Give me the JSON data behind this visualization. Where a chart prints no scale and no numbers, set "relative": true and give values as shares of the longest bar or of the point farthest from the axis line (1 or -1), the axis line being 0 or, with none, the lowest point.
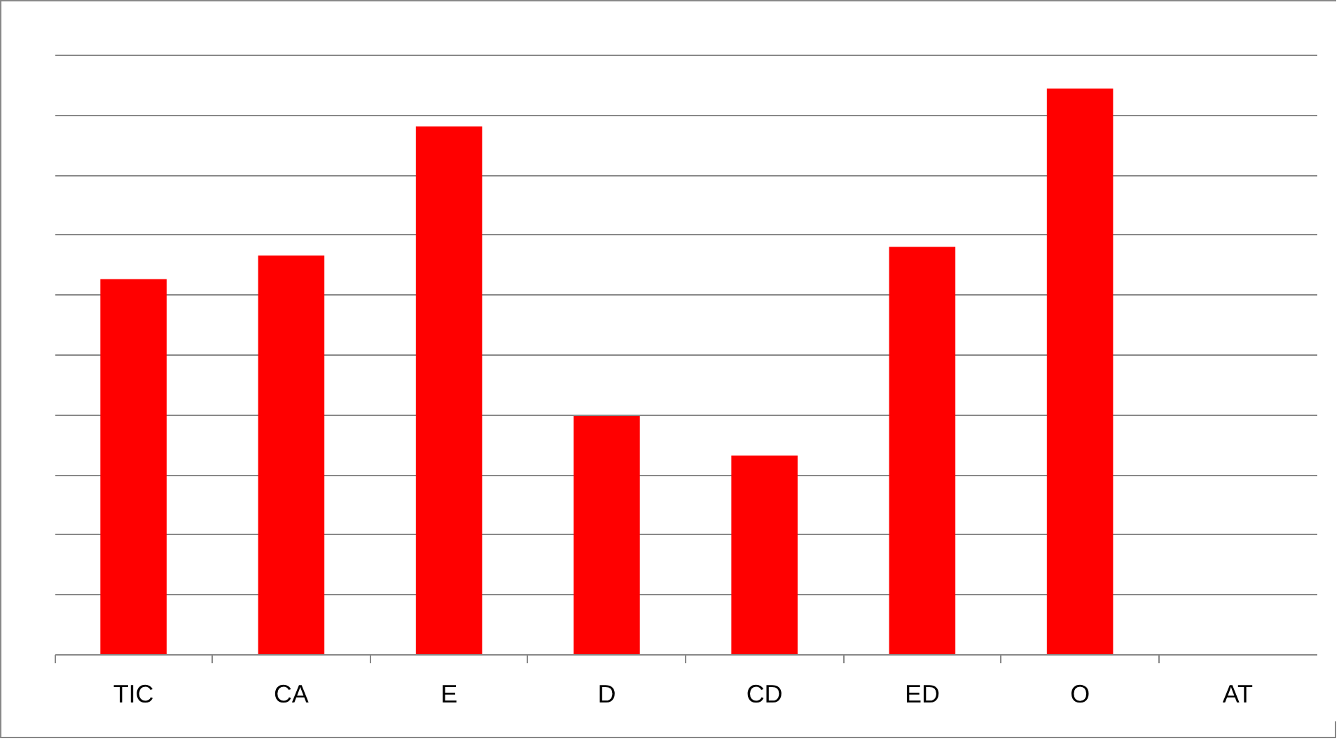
{
  "chart_data": {
    "type": "bar",
    "relative": true,
    "grid": "y",
    "color": "#ff0000",
    "categories": [
      "TIC",
      "CA",
      "E",
      "D",
      "CD",
      "ED",
      "O",
      "AT"
    ],
    "values": [
      0.663,
      0.705,
      0.933,
      0.421,
      0.351,
      0.72,
      1,
      0
    ]
  }
}
